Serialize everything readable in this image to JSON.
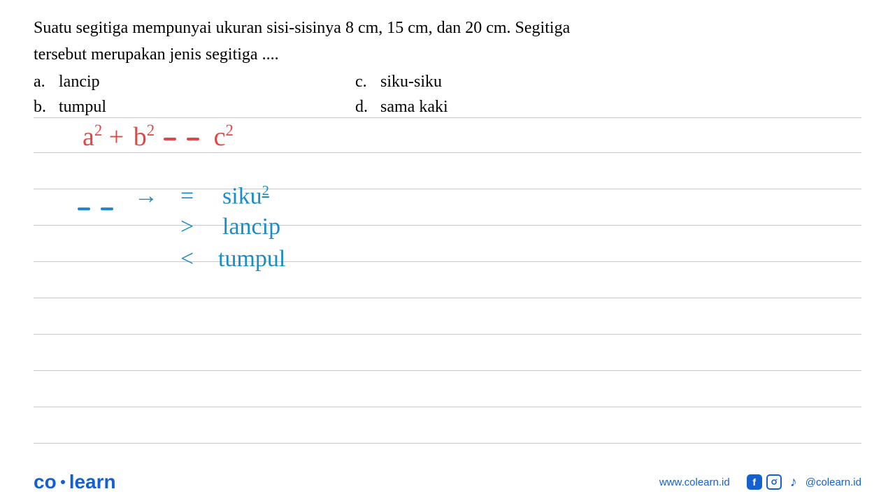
{
  "question": {
    "text_line1": "Suatu segitiga mempunyai ukuran sisi-sisinya 8 cm, 15 cm, dan 20 cm. Segitiga",
    "text_line2": "tersebut merupakan jenis segitiga ....",
    "options": {
      "a": {
        "letter": "a.",
        "text": "lancip"
      },
      "b": {
        "letter": "b.",
        "text": "tumpul"
      },
      "c": {
        "letter": "c.",
        "text": "siku-siku"
      },
      "d": {
        "letter": "d.",
        "text": "sama kaki"
      }
    }
  },
  "handwriting": {
    "formula": {
      "a": "a",
      "plus": "+",
      "b": "b",
      "c": "c",
      "exp": "2",
      "color": "#e04848",
      "font_size": 38
    },
    "rules": {
      "arrow": "→",
      "eq": "=",
      "gt": ">",
      "lt": "<",
      "siku": "siku",
      "siku_exp": "2",
      "lancip": "lancip",
      "tumpul": "tumpul",
      "color": "#1a8cc8",
      "font_size": 34
    }
  },
  "lines": {
    "positions": [
      0,
      50,
      102,
      154,
      206,
      258,
      310,
      362,
      414,
      466
    ],
    "color": "#c8c8c8"
  },
  "footer": {
    "logo_part1": "co",
    "logo_part2": "learn",
    "url": "www.colearn.id",
    "handle": "@colearn.id",
    "brand_color": "#1560d0"
  }
}
